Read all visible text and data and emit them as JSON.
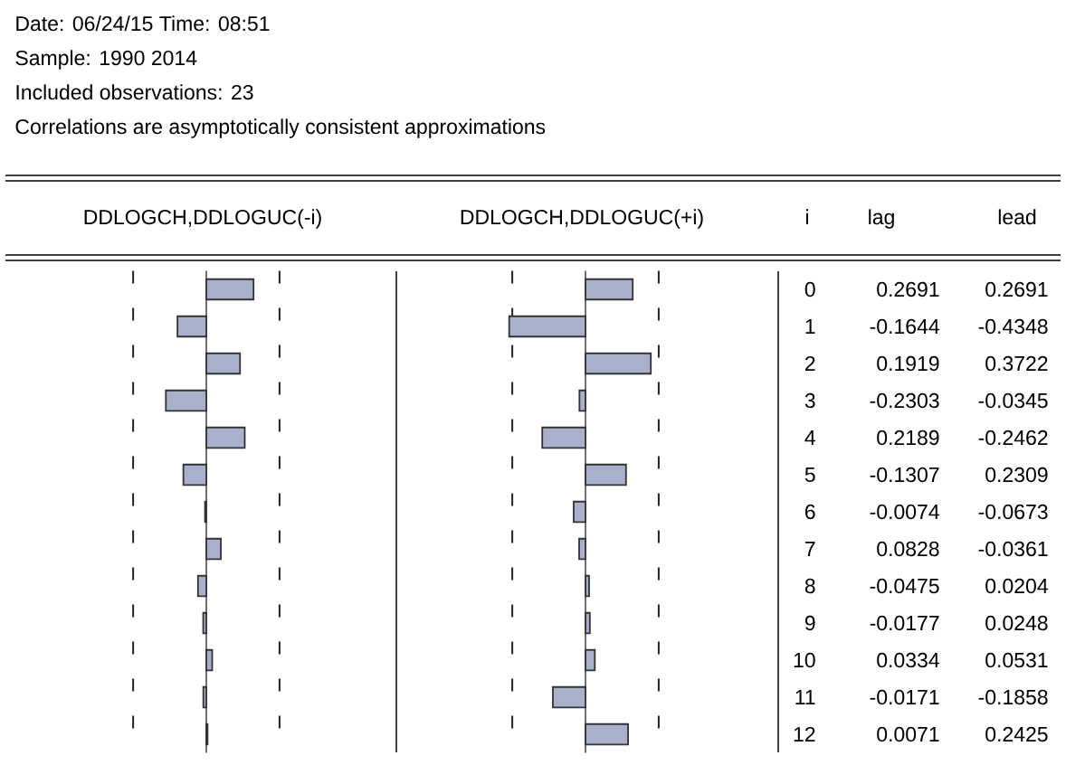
{
  "chart_data": [
    {
      "type": "bar",
      "orientation": "horizontal",
      "title": "DDLOGCH,DDLOGUC(-i)",
      "ylabel": "i",
      "annotations": [
        "Date: 06/24/15   Time: 08:51",
        "Sample: 1990 2014",
        "Included observations: 23",
        "Correlations are asymptotically consistent approximations",
        "lag"
      ],
      "categories": [
        "0",
        "1",
        "2",
        "3",
        "4",
        "5",
        "6",
        "7",
        "8",
        "9",
        "10",
        "11",
        "12"
      ],
      "values": [
        0.2691,
        -0.1644,
        0.1919,
        -0.2303,
        0.2189,
        -0.1307,
        -0.0074,
        0.0828,
        -0.0475,
        -0.0177,
        0.0334,
        -0.0171,
        0.0071
      ],
      "color": "#a9b0cc",
      "tick_labels": false,
      "data_labels": true,
      "ref_lines": [
        {
          "axis": "x",
          "value": -0.417,
          "line_style": "dashed",
          "color": "#222222"
        },
        {
          "axis": "x",
          "value": 0.417,
          "line_style": "dashed",
          "color": "#222222"
        }
      ]
    },
    {
      "type": "bar",
      "orientation": "horizontal",
      "title": "DDLOGCH,DDLOGUC(+i)",
      "annotations": [
        "lead"
      ],
      "categories": [
        null,
        null,
        null,
        null,
        null,
        null,
        null,
        null,
        null,
        null,
        null,
        null,
        null
      ],
      "values": [
        0.2691,
        -0.4348,
        0.3722,
        -0.0345,
        -0.2462,
        0.2309,
        -0.0673,
        -0.0361,
        0.0204,
        0.0248,
        0.0531,
        -0.1858,
        0.2425
      ],
      "color": "#a9b0cc",
      "tick_labels": false,
      "data_labels": true,
      "ref_lines": [
        {
          "axis": "x",
          "value": -0.417,
          "line_style": "dashed",
          "color": "#222222"
        },
        {
          "axis": "x",
          "value": 0.417,
          "line_style": "dashed",
          "color": "#222222"
        }
      ]
    }
  ]
}
